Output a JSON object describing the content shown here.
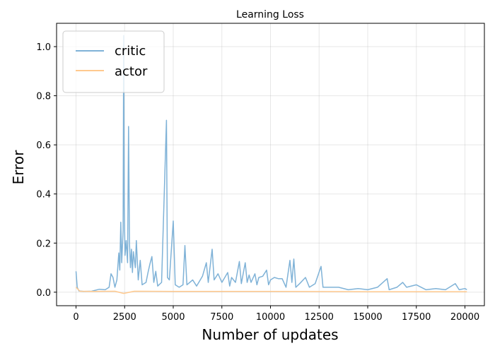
{
  "chart_data": {
    "type": "line",
    "title": "Learning Loss",
    "xlabel": "Number of updates",
    "ylabel": "Error",
    "xlim": [
      -1000,
      21000
    ],
    "ylim": [
      -0.055,
      1.095
    ],
    "x_ticks": [
      0,
      2500,
      5000,
      7500,
      10000,
      12500,
      15000,
      17500,
      20000
    ],
    "x_tick_labels": [
      "0",
      "2500",
      "5000",
      "7500",
      "10000",
      "12500",
      "15000",
      "17500",
      "20000"
    ],
    "y_ticks": [
      0.0,
      0.2,
      0.4,
      0.6,
      0.8,
      1.0
    ],
    "y_tick_labels": [
      "0.0",
      "0.2",
      "0.4",
      "0.6",
      "0.8",
      "1.0"
    ],
    "grid": true,
    "legend_position": "top-left",
    "series": [
      {
        "name": "critic",
        "color": "#7fb2d7",
        "points": [
          [
            0,
            0.085
          ],
          [
            60,
            0.02
          ],
          [
            150,
            0.005
          ],
          [
            400,
            0.003
          ],
          [
            800,
            0.004
          ],
          [
            1200,
            0.012
          ],
          [
            1500,
            0.01
          ],
          [
            1700,
            0.02
          ],
          [
            1800,
            0.075
          ],
          [
            1900,
            0.06
          ],
          [
            2000,
            0.02
          ],
          [
            2100,
            0.05
          ],
          [
            2200,
            0.16
          ],
          [
            2250,
            0.09
          ],
          [
            2300,
            0.285
          ],
          [
            2350,
            0.12
          ],
          [
            2420,
            0.25
          ],
          [
            2450,
            1.045
          ],
          [
            2480,
            0.35
          ],
          [
            2520,
            0.15
          ],
          [
            2580,
            0.21
          ],
          [
            2650,
            0.12
          ],
          [
            2700,
            0.675
          ],
          [
            2750,
            0.2
          ],
          [
            2800,
            0.1
          ],
          [
            2850,
            0.175
          ],
          [
            2900,
            0.08
          ],
          [
            2950,
            0.165
          ],
          [
            3050,
            0.1
          ],
          [
            3100,
            0.21
          ],
          [
            3200,
            0.05
          ],
          [
            3300,
            0.13
          ],
          [
            3400,
            0.03
          ],
          [
            3600,
            0.04
          ],
          [
            3700,
            0.08
          ],
          [
            3800,
            0.115
          ],
          [
            3900,
            0.145
          ],
          [
            4000,
            0.04
          ],
          [
            4100,
            0.085
          ],
          [
            4200,
            0.025
          ],
          [
            4400,
            0.04
          ],
          [
            4650,
            0.7
          ],
          [
            4700,
            0.06
          ],
          [
            4800,
            0.05
          ],
          [
            5000,
            0.29
          ],
          [
            5100,
            0.03
          ],
          [
            5300,
            0.02
          ],
          [
            5500,
            0.03
          ],
          [
            5600,
            0.19
          ],
          [
            5700,
            0.03
          ],
          [
            6000,
            0.05
          ],
          [
            6200,
            0.025
          ],
          [
            6500,
            0.065
          ],
          [
            6700,
            0.12
          ],
          [
            6800,
            0.04
          ],
          [
            7000,
            0.175
          ],
          [
            7100,
            0.05
          ],
          [
            7300,
            0.075
          ],
          [
            7500,
            0.04
          ],
          [
            7800,
            0.08
          ],
          [
            7900,
            0.025
          ],
          [
            8000,
            0.06
          ],
          [
            8200,
            0.04
          ],
          [
            8400,
            0.125
          ],
          [
            8500,
            0.035
          ],
          [
            8700,
            0.12
          ],
          [
            8800,
            0.04
          ],
          [
            8900,
            0.07
          ],
          [
            9000,
            0.04
          ],
          [
            9200,
            0.075
          ],
          [
            9300,
            0.03
          ],
          [
            9400,
            0.06
          ],
          [
            9600,
            0.065
          ],
          [
            9800,
            0.09
          ],
          [
            9900,
            0.03
          ],
          [
            10000,
            0.05
          ],
          [
            10200,
            0.06
          ],
          [
            10400,
            0.055
          ],
          [
            10600,
            0.055
          ],
          [
            10800,
            0.02
          ],
          [
            11000,
            0.13
          ],
          [
            11100,
            0.04
          ],
          [
            11200,
            0.135
          ],
          [
            11300,
            0.02
          ],
          [
            11500,
            0.035
          ],
          [
            11800,
            0.06
          ],
          [
            12000,
            0.02
          ],
          [
            12300,
            0.035
          ],
          [
            12600,
            0.105
          ],
          [
            12700,
            0.02
          ],
          [
            13000,
            0.02
          ],
          [
            13500,
            0.02
          ],
          [
            14000,
            0.01
          ],
          [
            14500,
            0.015
          ],
          [
            15000,
            0.01
          ],
          [
            15500,
            0.02
          ],
          [
            16000,
            0.055
          ],
          [
            16100,
            0.01
          ],
          [
            16500,
            0.02
          ],
          [
            16800,
            0.04
          ],
          [
            17000,
            0.02
          ],
          [
            17500,
            0.03
          ],
          [
            18000,
            0.01
          ],
          [
            18500,
            0.015
          ],
          [
            19000,
            0.01
          ],
          [
            19500,
            0.035
          ],
          [
            19700,
            0.01
          ],
          [
            20000,
            0.015
          ],
          [
            20100,
            0.01
          ]
        ]
      },
      {
        "name": "actor",
        "color": "#ffc98e",
        "points": [
          [
            0,
            0.02
          ],
          [
            200,
            0.004
          ],
          [
            1000,
            0.003
          ],
          [
            2000,
            0.004
          ],
          [
            2450,
            -0.005
          ],
          [
            3000,
            0.004
          ],
          [
            5000,
            0.003
          ],
          [
            10000,
            0.003
          ],
          [
            15000,
            0.002
          ],
          [
            20000,
            0.002
          ],
          [
            20100,
            0.002
          ]
        ]
      }
    ]
  }
}
